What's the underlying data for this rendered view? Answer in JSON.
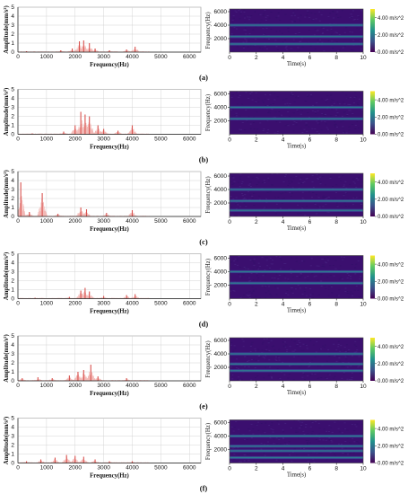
{
  "panels": [
    {
      "label": "(a)",
      "spectrum": {
        "type": "bar",
        "xlabel": "Frequency(Hz)",
        "ylabel": "Amplitude(mm/s²)",
        "xlim": [
          0,
          6400
        ],
        "ylim": [
          0,
          5
        ],
        "x_ticks": [
          0,
          1000,
          2000,
          3000,
          4000,
          5000,
          6000
        ],
        "y_ticks": [
          0,
          1,
          2,
          3,
          4,
          5
        ],
        "peaks": [
          {
            "x": 300,
            "y": 0.1
          },
          {
            "x": 1500,
            "y": 0.2
          },
          {
            "x": 1900,
            "y": 0.4
          },
          {
            "x": 2150,
            "y": 1.2
          },
          {
            "x": 2300,
            "y": 1.3
          },
          {
            "x": 2500,
            "y": 1.0
          },
          {
            "x": 2700,
            "y": 0.4
          },
          {
            "x": 3200,
            "y": 0.2
          },
          {
            "x": 3800,
            "y": 0.3
          },
          {
            "x": 4100,
            "y": 0.6
          }
        ]
      },
      "spectrogram": {
        "type": "heatmap",
        "xlabel": "Time(s)",
        "ylabel": "Frequency(Hz)",
        "x_ticks": [
          0,
          2,
          4,
          6,
          8,
          10
        ],
        "y_ticks": [
          2000,
          4000,
          6000
        ],
        "colorbar_ticks": [
          "0.00 m/s^2",
          "2.00 m/s^2",
          "4.00 m/s^2"
        ],
        "bands_hz": [
          1200,
          2300,
          4000
        ]
      }
    },
    {
      "label": "(b)",
      "spectrum": {
        "type": "bar",
        "xlabel": "Frequency(Hz)",
        "ylabel": "Amplitude(mm/s²)",
        "xlim": [
          0,
          6400
        ],
        "ylim": [
          0,
          5
        ],
        "x_ticks": [
          0,
          1000,
          2000,
          3000,
          4000,
          5000,
          6000
        ],
        "y_ticks": [
          0,
          1,
          2,
          3,
          4,
          5
        ],
        "peaks": [
          {
            "x": 500,
            "y": 0.1
          },
          {
            "x": 1600,
            "y": 0.3
          },
          {
            "x": 2000,
            "y": 1.0
          },
          {
            "x": 2200,
            "y": 2.5
          },
          {
            "x": 2350,
            "y": 2.2
          },
          {
            "x": 2500,
            "y": 2.0
          },
          {
            "x": 2800,
            "y": 1.0
          },
          {
            "x": 3000,
            "y": 0.6
          },
          {
            "x": 3500,
            "y": 0.4
          },
          {
            "x": 4000,
            "y": 1.0
          }
        ]
      },
      "spectrogram": {
        "type": "heatmap",
        "xlabel": "Time(s)",
        "ylabel": "Frequency(Hz)",
        "x_ticks": [
          0,
          2,
          4,
          6,
          8,
          10
        ],
        "y_ticks": [
          2000,
          4000,
          6000
        ],
        "colorbar_ticks": [
          "0.00 m/s^2",
          "2.00 m/s^2",
          "4.00 m/s^2"
        ],
        "bands_hz": [
          2300,
          4000
        ]
      }
    },
    {
      "label": "(c)",
      "spectrum": {
        "type": "bar",
        "xlabel": "Frequency(Hz)",
        "ylabel": "Amplitude(mm/s²)",
        "xlim": [
          0,
          6400
        ],
        "ylim": [
          0,
          5
        ],
        "x_ticks": [
          0,
          1000,
          2000,
          3000,
          4000,
          5000,
          6000
        ],
        "y_ticks": [
          0,
          1,
          2,
          3,
          4,
          5
        ],
        "peaks": [
          {
            "x": 100,
            "y": 3.8
          },
          {
            "x": 400,
            "y": 0.5
          },
          {
            "x": 850,
            "y": 2.6
          },
          {
            "x": 1400,
            "y": 0.3
          },
          {
            "x": 2200,
            "y": 1.0
          },
          {
            "x": 2400,
            "y": 0.8
          },
          {
            "x": 3100,
            "y": 0.4
          },
          {
            "x": 4000,
            "y": 0.7
          }
        ]
      },
      "spectrogram": {
        "type": "heatmap",
        "xlabel": "Time(s)",
        "ylabel": "Frequency(Hz)",
        "x_ticks": [
          0,
          2,
          4,
          6,
          8,
          10
        ],
        "y_ticks": [
          2000,
          4000,
          6000
        ],
        "colorbar_ticks": [
          "0.00 m/s^2",
          "2.00 m/s^2",
          "4.00 m/s^2"
        ],
        "bands_hz": [
          900,
          2300,
          4000
        ]
      }
    },
    {
      "label": "(d)",
      "spectrum": {
        "type": "bar",
        "xlabel": "Frequency(Hz)",
        "ylabel": "Amplitude(mm/s²)",
        "xlim": [
          0,
          6400
        ],
        "ylim": [
          0,
          5
        ],
        "x_ticks": [
          0,
          1000,
          2000,
          3000,
          4000,
          5000,
          6000
        ],
        "y_ticks": [
          0,
          1,
          2,
          3,
          4,
          5
        ],
        "peaks": [
          {
            "x": 600,
            "y": 0.1
          },
          {
            "x": 1800,
            "y": 0.2
          },
          {
            "x": 2200,
            "y": 0.9
          },
          {
            "x": 2350,
            "y": 1.2
          },
          {
            "x": 2500,
            "y": 0.8
          },
          {
            "x": 3000,
            "y": 0.3
          },
          {
            "x": 3800,
            "y": 0.4
          },
          {
            "x": 4100,
            "y": 0.5
          }
        ]
      },
      "spectrogram": {
        "type": "heatmap",
        "xlabel": "Time(s)",
        "ylabel": "Frequency(Hz)",
        "x_ticks": [
          0,
          2,
          4,
          6,
          8,
          10
        ],
        "y_ticks": [
          2000,
          4000,
          6000
        ],
        "colorbar_ticks": [
          "0.00 m/s^2",
          "2.00 m/s^2",
          "4.00 m/s^2"
        ],
        "bands_hz": [
          2300,
          4000
        ]
      }
    },
    {
      "label": "(e)",
      "spectrum": {
        "type": "bar",
        "xlabel": "Frequency(Hz)",
        "ylabel": "Amplitude(mm/s²)",
        "xlim": [
          0,
          6400
        ],
        "ylim": [
          0,
          5
        ],
        "x_ticks": [
          0,
          1000,
          2000,
          3000,
          4000,
          5000,
          6000
        ],
        "y_ticks": [
          0,
          1,
          2,
          3,
          4,
          5
        ],
        "peaks": [
          {
            "x": 150,
            "y": 0.3
          },
          {
            "x": 700,
            "y": 0.4
          },
          {
            "x": 1200,
            "y": 0.3
          },
          {
            "x": 1800,
            "y": 0.6
          },
          {
            "x": 2100,
            "y": 1.0
          },
          {
            "x": 2300,
            "y": 1.2
          },
          {
            "x": 2550,
            "y": 1.8
          },
          {
            "x": 2800,
            "y": 0.5
          },
          {
            "x": 3800,
            "y": 0.3
          }
        ]
      },
      "spectrogram": {
        "type": "heatmap",
        "xlabel": "Time(s)",
        "ylabel": "Frequency(Hz)",
        "x_ticks": [
          0,
          2,
          4,
          6,
          8,
          10
        ],
        "y_ticks": [
          2000,
          4000,
          6000
        ],
        "colorbar_ticks": [
          "0.00 m/s^2",
          "2.00 m/s^2",
          "4.00 m/s^2"
        ],
        "bands_hz": [
          1500,
          2500,
          4000
        ]
      }
    },
    {
      "label": "(f)",
      "spectrum": {
        "type": "bar",
        "xlabel": "Frequency(Hz)",
        "ylabel": "Amplitude(mm/s²)",
        "xlim": [
          0,
          6400
        ],
        "ylim": [
          0,
          5
        ],
        "x_ticks": [
          0,
          1000,
          2000,
          3000,
          4000,
          5000,
          6000
        ],
        "y_ticks": [
          0,
          1,
          2,
          3,
          4,
          5
        ],
        "peaks": [
          {
            "x": 300,
            "y": 0.2
          },
          {
            "x": 800,
            "y": 0.4
          },
          {
            "x": 1300,
            "y": 0.6
          },
          {
            "x": 1700,
            "y": 0.9
          },
          {
            "x": 2000,
            "y": 0.8
          },
          {
            "x": 2300,
            "y": 0.7
          },
          {
            "x": 2700,
            "y": 0.4
          },
          {
            "x": 3200,
            "y": 0.2
          },
          {
            "x": 4000,
            "y": 0.2
          }
        ]
      },
      "spectrogram": {
        "type": "heatmap",
        "xlabel": "Time(s)",
        "ylabel": "Frequency(Hz)",
        "x_ticks": [
          0,
          2,
          4,
          6,
          8,
          10
        ],
        "y_ticks": [
          2000,
          4000,
          6000
        ],
        "colorbar_ticks": [
          "0.00 m/s^2",
          "2.00 m/s^2",
          "4.00 m/s^2"
        ],
        "bands_hz": [
          800,
          1800,
          2500,
          4000
        ]
      }
    }
  ],
  "colors": {
    "bar": "#d9534f",
    "bar_light": "#f2b8b5",
    "grid": "#d4d4d4",
    "axis": "#222222",
    "spec_bg": "#3b0f6f",
    "band_teal": "#2d7f8e",
    "band_blue": "#3b4f9a"
  }
}
